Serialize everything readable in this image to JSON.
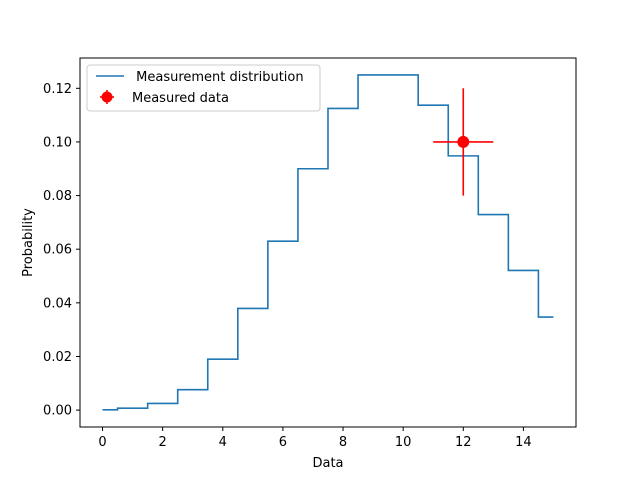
{
  "chart_data": {
    "type": "line",
    "xlabel": "Data",
    "ylabel": "Probability",
    "xlim": [
      -0.75,
      15.75
    ],
    "ylim": [
      -0.0063,
      0.1313
    ],
    "x_ticks": [
      0,
      2,
      4,
      6,
      8,
      10,
      12,
      14
    ],
    "y_ticks": [
      0.0,
      0.02,
      0.04,
      0.06,
      0.08,
      0.1,
      0.12
    ],
    "x_tick_labels": [
      "0",
      "2",
      "4",
      "6",
      "8",
      "10",
      "12",
      "14"
    ],
    "y_tick_labels": [
      "0.00",
      "0.02",
      "0.04",
      "0.06",
      "0.08",
      "0.10",
      "0.12"
    ],
    "grid": false,
    "legend_position": "top-left",
    "series": [
      {
        "name": " Measurement distribution",
        "kind": "step-mid",
        "color": "#1f77b4",
        "x": [
          0,
          1,
          2,
          3,
          4,
          5,
          6,
          7,
          8,
          9,
          10,
          11,
          12,
          13,
          14,
          15
        ],
        "y": [
          0.0001,
          0.0007,
          0.0025,
          0.0076,
          0.019,
          0.0379,
          0.063,
          0.09,
          0.1125,
          0.125,
          0.125,
          0.1137,
          0.0948,
          0.0729,
          0.0521,
          0.0347
        ]
      },
      {
        "name": "Measured data",
        "kind": "errorbar",
        "color": "#ff0000",
        "x": [
          12
        ],
        "y": [
          0.1
        ],
        "xerr": [
          1
        ],
        "yerr": [
          0.02
        ]
      }
    ]
  }
}
